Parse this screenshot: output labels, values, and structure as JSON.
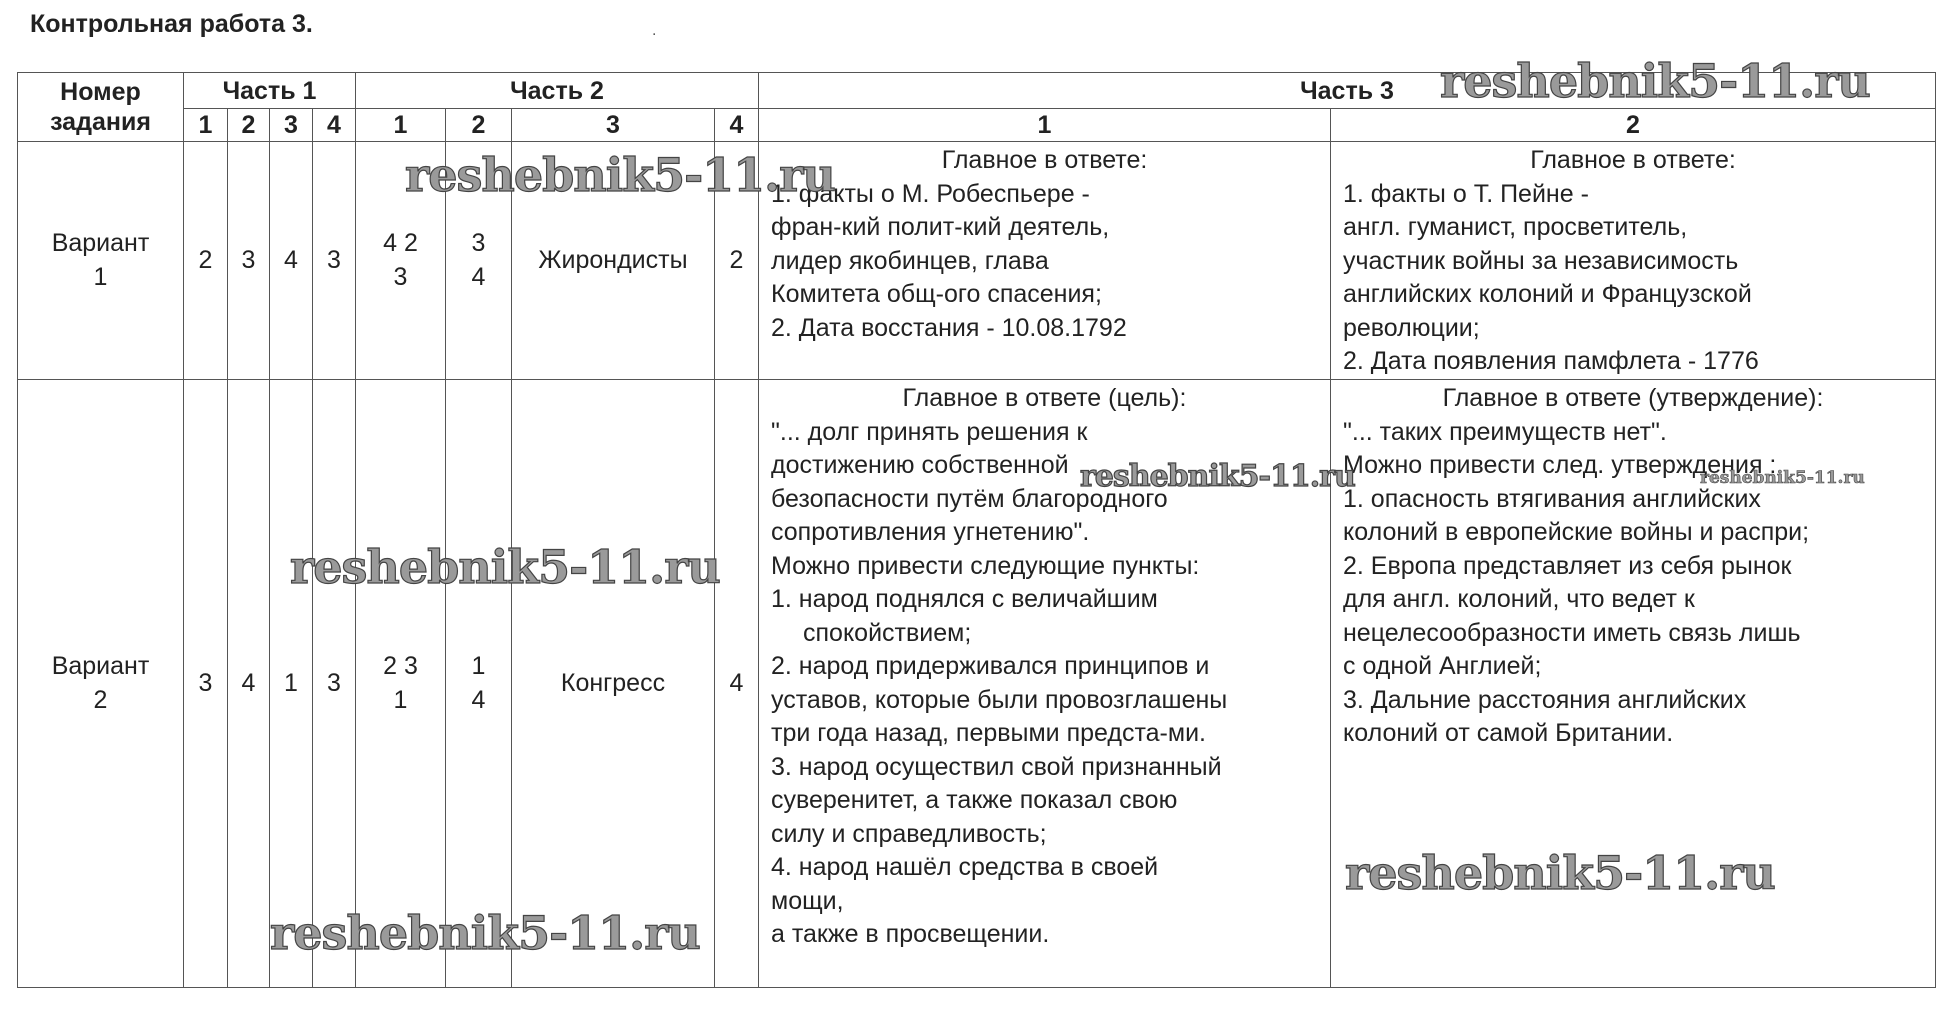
{
  "title": "Контрольная работа 3.",
  "stray_mark": ".",
  "header": {
    "task_number": [
      "Номер",
      "задания"
    ],
    "part1": "Часть 1",
    "part2": "Часть 2",
    "part3": "Часть 3",
    "part1_cols": [
      "1",
      "2",
      "3",
      "4"
    ],
    "part2_cols": [
      "1",
      "2",
      "3",
      "4"
    ],
    "part3_cols": [
      "1",
      "2"
    ]
  },
  "rows": [
    {
      "variant": [
        "Вариант",
        "1"
      ],
      "part1": [
        "2",
        "3",
        "4",
        "3"
      ],
      "part2": [
        [
          "4 2",
          "3"
        ],
        [
          "3",
          "4"
        ],
        [
          "Жирондисты"
        ],
        [
          "2"
        ]
      ],
      "part3_1": [
        {
          "t": "Главное в ответе:",
          "s": "center"
        },
        {
          "t": "1. факты о  М. Робеспьере -",
          "s": ""
        },
        {
          "t": "фран-кий полит-кий деятель,",
          "s": ""
        },
        {
          "t": "лидер якобинцев, глава",
          "s": ""
        },
        {
          "t": "Комитета общ-ого спасения;",
          "s": ""
        },
        {
          "t": "2. Дата восстания - 10.08.1792",
          "s": ""
        }
      ],
      "part3_2": [
        {
          "t": "Главное в ответе:",
          "s": "center"
        },
        {
          "t": "1. факты о Т. Пейне -",
          "s": ""
        },
        {
          "t": "англ. гуманист, просветитель,",
          "s": ""
        },
        {
          "t": "участник войны за независимость",
          "s": ""
        },
        {
          "t": "английских колоний и Французской",
          "s": ""
        },
        {
          "t": "революции;",
          "s": ""
        },
        {
          "t": "2. Дата появления памфлета - 1776",
          "s": ""
        }
      ]
    },
    {
      "variant": [
        "Вариант",
        "2"
      ],
      "part1": [
        "3",
        "4",
        "1",
        "3"
      ],
      "part2": [
        [
          "2 3",
          "1"
        ],
        [
          "1",
          "4"
        ],
        [
          "Конгресс"
        ],
        [
          "4"
        ]
      ],
      "part3_1": [
        {
          "t": "Главное в ответе (цель):",
          "s": "center"
        },
        {
          "t": "\"... долг принять решения к",
          "s": ""
        },
        {
          "t": "достижению собственной",
          "s": ""
        },
        {
          "t": "безопасности путём благородного",
          "s": ""
        },
        {
          "t": "сопротивления угнетению\".",
          "s": ""
        },
        {
          "t": " ",
          "s": ""
        },
        {
          "t": "Можно привести следующие пункты:",
          "s": ""
        },
        {
          "t": "1. народ поднялся с величайшим",
          "s": ""
        },
        {
          "t": "спокойствием;",
          "s": "indent"
        },
        {
          "t": "2. народ придерживался принципов и",
          "s": ""
        },
        {
          "t": "уставов, которые были провозглашены",
          "s": ""
        },
        {
          "t": "три года назад, первыми предста-ми.",
          "s": ""
        },
        {
          "t": "3. народ осуществил свой признанный",
          "s": ""
        },
        {
          "t": "суверенитет, а также показал свою",
          "s": ""
        },
        {
          "t": "силу и справедливость;",
          "s": ""
        },
        {
          "t": "4. народ нашёл средства в своей",
          "s": ""
        },
        {
          "t": "мощи,",
          "s": ""
        },
        {
          "t": "а также в просвещении.",
          "s": ""
        }
      ],
      "part3_2": [
        {
          "t": "Главное в ответе (утверждение):",
          "s": "center"
        },
        {
          "t": "\"... таких преимуществ нет\".",
          "s": ""
        },
        {
          "t": " ",
          "s": ""
        },
        {
          "t": "Можно привести след. утверждения :",
          "s": ""
        },
        {
          "t": "1. опасность втягивания английских",
          "s": ""
        },
        {
          "t": "колоний в европейские войны и распри;",
          "s": ""
        },
        {
          "t": "2. Европа представляет из себя рынок",
          "s": ""
        },
        {
          "t": "для англ. колоний, что ведет к",
          "s": ""
        },
        {
          "t": "нецелесообразности иметь связь лишь",
          "s": ""
        },
        {
          "t": "с одной Англией;",
          "s": ""
        },
        {
          "t": "3. Дальние расстояния английских",
          "s": ""
        },
        {
          "t": "колоний от самой Британии.",
          "s": ""
        }
      ]
    }
  ],
  "watermarks": [
    "reshebnik5-11.ru",
    "reshebnik5-11.ru",
    "reshebnik5-11.ru",
    "reshebnik5-11.ru",
    "reshebnik5-11.ru",
    "reshebnik5-11.ru",
    "reshebnik5-11.ru"
  ]
}
